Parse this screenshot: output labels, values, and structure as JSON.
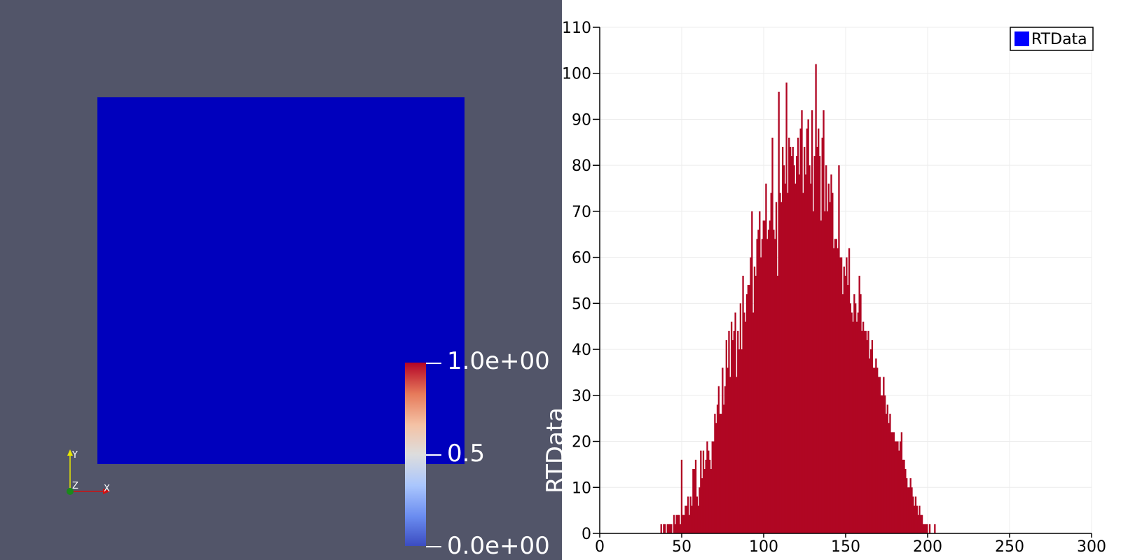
{
  "render_view": {
    "background_color": "#525569",
    "surface_color": "#0000bd",
    "orientation_axes": {
      "x_label": "X",
      "y_label": "Y",
      "z_label": "Z"
    },
    "color_legend": {
      "title": "RTData",
      "max_label": "1.0e+00",
      "mid_label": "0.5",
      "min_label": "0.0e+00",
      "colors": [
        "#3b4cc0",
        "#dddddd",
        "#b40426"
      ]
    }
  },
  "chart_data": {
    "type": "bar",
    "legend": {
      "label": "RTData",
      "swatch_color": "#0000ff",
      "position": "top-right"
    },
    "bar_color": "#b00623",
    "xlim": [
      0,
      300
    ],
    "ylim": [
      0,
      110
    ],
    "x_ticks": [
      "0",
      "50",
      "100",
      "150",
      "200",
      "250",
      "300"
    ],
    "y_ticks": [
      "0",
      "10",
      "20",
      "30",
      "40",
      "50",
      "60",
      "70",
      "80",
      "90",
      "100",
      "110"
    ],
    "grid": true,
    "bin_start": 37,
    "bin_width": 0.78,
    "values": [
      2,
      0,
      2,
      2,
      0,
      2,
      2,
      2,
      2,
      0,
      4,
      2,
      4,
      4,
      4,
      2,
      16,
      4,
      4,
      6,
      6,
      8,
      4,
      8,
      6,
      14,
      14,
      16,
      8,
      6,
      10,
      18,
      12,
      18,
      14,
      16,
      20,
      18,
      16,
      14,
      20,
      20,
      26,
      24,
      28,
      32,
      26,
      26,
      36,
      28,
      32,
      42,
      36,
      44,
      34,
      46,
      42,
      44,
      48,
      34,
      44,
      40,
      50,
      40,
      56,
      48,
      46,
      52,
      54,
      54,
      60,
      70,
      48,
      58,
      56,
      64,
      66,
      70,
      60,
      64,
      68,
      68,
      76,
      64,
      66,
      68,
      74,
      86,
      66,
      64,
      72,
      56,
      96,
      74,
      72,
      84,
      80,
      76,
      98,
      74,
      86,
      84,
      82,
      84,
      80,
      76,
      82,
      86,
      78,
      88,
      92,
      74,
      84,
      78,
      88,
      90,
      80,
      76,
      92,
      70,
      82,
      102,
      84,
      88,
      82,
      68,
      86,
      92,
      70,
      80,
      70,
      76,
      72,
      78,
      74,
      62,
      64,
      64,
      62,
      80,
      60,
      60,
      52,
      58,
      56,
      60,
      54,
      62,
      50,
      48,
      46,
      52,
      50,
      46,
      48,
      56,
      52,
      44,
      46,
      44,
      44,
      42,
      44,
      38,
      40,
      42,
      36,
      36,
      38,
      36,
      34,
      34,
      30,
      30,
      34,
      30,
      26,
      28,
      24,
      26,
      22,
      22,
      22,
      20,
      20,
      20,
      18,
      20,
      22,
      16,
      16,
      14,
      12,
      10,
      10,
      12,
      10,
      8,
      6,
      8,
      6,
      4,
      6,
      4,
      4,
      2,
      2,
      2,
      2,
      0,
      2,
      0,
      0,
      0,
      2
    ]
  }
}
